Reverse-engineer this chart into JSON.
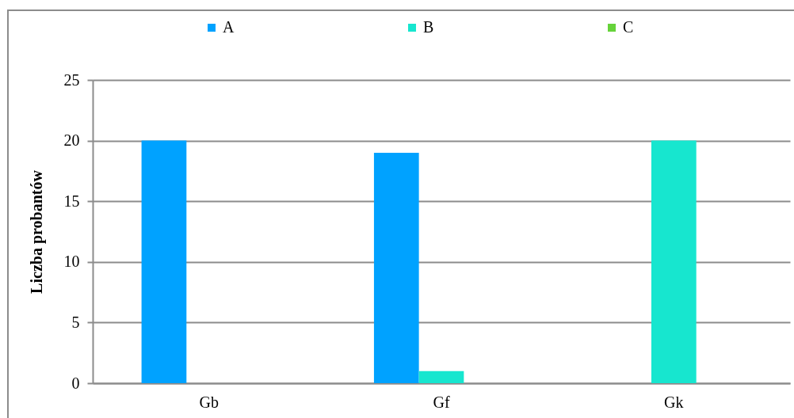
{
  "chart_data": {
    "type": "bar",
    "ylabel": "Liczba probantów",
    "categories": [
      "Gb",
      "Gf",
      "Gk"
    ],
    "series": [
      {
        "name": "A",
        "color": "#00a2ff",
        "values": [
          20,
          19,
          0
        ]
      },
      {
        "name": "B",
        "color": "#17e6cf",
        "values": [
          0,
          1,
          20
        ]
      },
      {
        "name": "C",
        "color": "#66d33a",
        "values": [
          0,
          0,
          0
        ]
      }
    ],
    "ylim": [
      0,
      25
    ],
    "yticks": [
      0,
      5,
      10,
      15,
      20,
      25
    ],
    "grid": "y",
    "legend": "top"
  }
}
